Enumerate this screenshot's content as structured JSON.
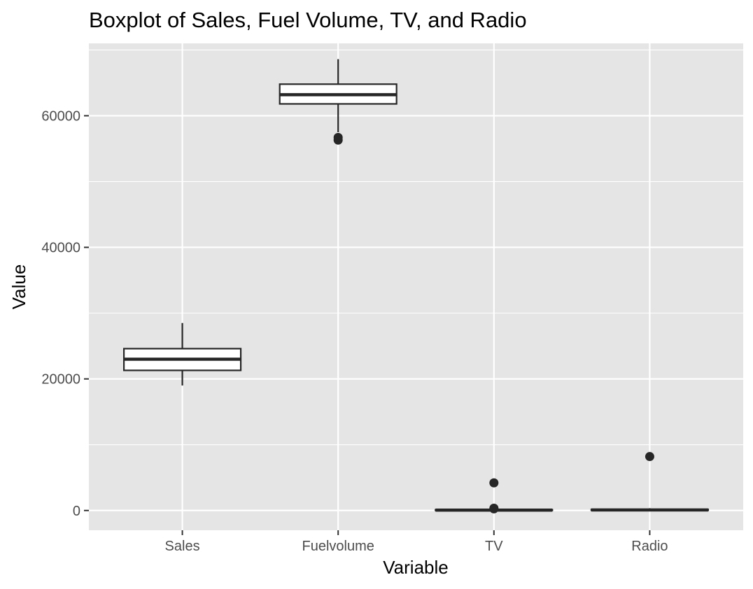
{
  "colors": {
    "panel_background": "#e5e5e5",
    "grid": "#ffffff",
    "box_fill": "#ffffff",
    "box_stroke": "#262626",
    "tick_text": "#4d4d4d"
  },
  "chart_data": {
    "type": "boxplot",
    "title": "Boxplot of Sales, Fuel Volume, TV, and Radio",
    "xlabel": "Variable",
    "ylabel": "Value",
    "categories": [
      "Sales",
      "Fuelvolume",
      "TV",
      "Radio"
    ],
    "ylim": [
      -3000,
      71000
    ],
    "yticks": [
      0,
      20000,
      40000,
      60000
    ],
    "ytick_labels": [
      "0",
      "20000",
      "40000",
      "60000"
    ],
    "grid": true,
    "legend": "none",
    "boxes": [
      {
        "name": "Sales",
        "whisker_low": 19000,
        "q1": 21300,
        "median": 23000,
        "q3": 24600,
        "whisker_high": 28500,
        "outliers": []
      },
      {
        "name": "Fuelvolume",
        "whisker_low": 57500,
        "q1": 61800,
        "median": 63200,
        "q3": 64800,
        "whisker_high": 68600,
        "outliers": [
          56300,
          56700
        ]
      },
      {
        "name": "TV",
        "whisker_low": 0,
        "q1": 20,
        "median": 60,
        "q3": 120,
        "whisker_high": 280,
        "outliers": [
          4200,
          350,
          250
        ]
      },
      {
        "name": "Radio",
        "whisker_low": 0,
        "q1": 30,
        "median": 80,
        "q3": 160,
        "whisker_high": 350,
        "outliers": [
          8200
        ]
      }
    ]
  }
}
